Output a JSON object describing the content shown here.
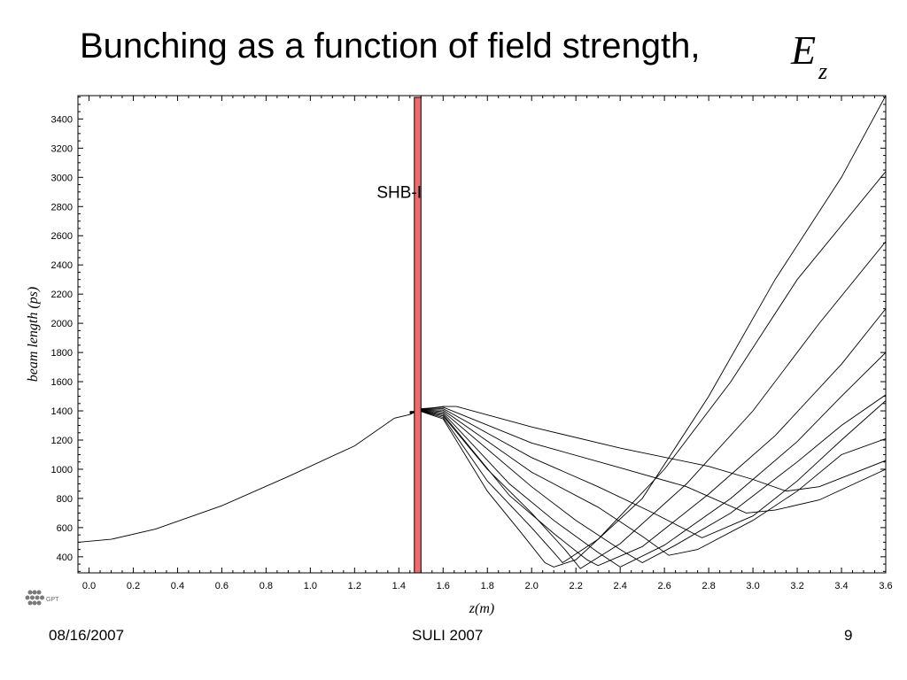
{
  "slide": {
    "title": "Bunching as a function of field strength,",
    "title_var": "E",
    "title_sub": "z",
    "footer_date": "08/16/2007",
    "footer_center": "SULI 2007",
    "page_number": "9",
    "logo_text": "GPT"
  },
  "chart_data": {
    "type": "line",
    "title": "",
    "xlabel": "z(m)",
    "ylabel": "beam length (ps)",
    "xlim": [
      -0.05,
      3.6
    ],
    "ylim": [
      290,
      3560
    ],
    "xticks": [
      "0.0",
      "0.2",
      "0.4",
      "0.6",
      "0.8",
      "1.0",
      "1.2",
      "1.4",
      "1.6",
      "1.8",
      "2.0",
      "2.2",
      "2.4",
      "2.6",
      "2.8",
      "3.0",
      "3.2",
      "3.4",
      "3.6"
    ],
    "yticks": [
      "400",
      "600",
      "800",
      "1000",
      "1200",
      "1400",
      "1600",
      "1800",
      "2000",
      "2200",
      "2400",
      "2600",
      "2800",
      "3000",
      "3200",
      "3400"
    ],
    "annotation": {
      "label": "SHB-I",
      "x": 1.3,
      "y": 2860
    },
    "cavity": {
      "x_start": 1.47,
      "x_end": 1.5,
      "color": "#f06b6b"
    },
    "colors": {
      "line": "#000000",
      "axis": "#000000"
    },
    "series": [
      {
        "values": [
          [
            -0.05,
            500
          ],
          [
            0.1,
            520
          ],
          [
            0.3,
            590
          ],
          [
            0.6,
            750
          ],
          [
            0.9,
            950
          ],
          [
            1.2,
            1160
          ],
          [
            1.38,
            1350
          ],
          [
            1.45,
            1375
          ],
          [
            1.5,
            1410
          ],
          [
            1.6,
            1430
          ],
          [
            1.66,
            1430
          ],
          [
            2.0,
            1290
          ],
          [
            2.4,
            1145
          ],
          [
            2.8,
            1020
          ],
          [
            3.0,
            930
          ],
          [
            3.15,
            850
          ],
          [
            3.3,
            880
          ],
          [
            3.6,
            1060
          ]
        ]
      },
      {
        "values": [
          [
            1.45,
            1380
          ],
          [
            1.5,
            1415
          ],
          [
            1.6,
            1425
          ],
          [
            2.0,
            1180
          ],
          [
            2.4,
            1010
          ],
          [
            2.7,
            880
          ],
          [
            2.97,
            700
          ],
          [
            3.1,
            720
          ],
          [
            3.3,
            790
          ],
          [
            3.6,
            1000
          ]
        ]
      },
      {
        "values": [
          [
            1.45,
            1382
          ],
          [
            1.5,
            1412
          ],
          [
            1.6,
            1415
          ],
          [
            2.0,
            1080
          ],
          [
            2.3,
            880
          ],
          [
            2.55,
            700
          ],
          [
            2.77,
            530
          ],
          [
            3.0,
            680
          ],
          [
            3.2,
            920
          ],
          [
            3.4,
            1200
          ],
          [
            3.6,
            1470
          ]
        ]
      },
      {
        "values": [
          [
            1.45,
            1384
          ],
          [
            1.5,
            1410
          ],
          [
            1.6,
            1405
          ],
          [
            2.0,
            980
          ],
          [
            2.3,
            740
          ],
          [
            2.5,
            540
          ],
          [
            2.62,
            410
          ],
          [
            2.75,
            450
          ],
          [
            3.0,
            650
          ],
          [
            3.2,
            850
          ],
          [
            3.4,
            1100
          ],
          [
            3.6,
            1210
          ]
        ]
      },
      {
        "values": [
          [
            1.45,
            1386
          ],
          [
            1.5,
            1408
          ],
          [
            1.6,
            1395
          ],
          [
            2.0,
            880
          ],
          [
            2.2,
            650
          ],
          [
            2.4,
            450
          ],
          [
            2.5,
            360
          ],
          [
            2.65,
            480
          ],
          [
            2.9,
            700
          ],
          [
            3.2,
            1050
          ],
          [
            3.4,
            1300
          ],
          [
            3.6,
            1510
          ]
        ]
      },
      {
        "values": [
          [
            1.45,
            1388
          ],
          [
            1.5,
            1405
          ],
          [
            1.6,
            1385
          ],
          [
            1.9,
            900
          ],
          [
            2.1,
            650
          ],
          [
            2.3,
            430
          ],
          [
            2.4,
            330
          ],
          [
            2.6,
            480
          ],
          [
            2.9,
            800
          ],
          [
            3.2,
            1190
          ],
          [
            3.4,
            1500
          ],
          [
            3.6,
            1800
          ]
        ]
      },
      {
        "values": [
          [
            1.45,
            1390
          ],
          [
            1.5,
            1402
          ],
          [
            1.6,
            1375
          ],
          [
            1.9,
            820
          ],
          [
            2.1,
            560
          ],
          [
            2.25,
            380
          ],
          [
            2.3,
            340
          ],
          [
            2.5,
            470
          ],
          [
            2.8,
            830
          ],
          [
            3.1,
            1230
          ],
          [
            3.4,
            1720
          ],
          [
            3.6,
            2100
          ]
        ]
      },
      {
        "values": [
          [
            1.45,
            1392
          ],
          [
            1.5,
            1400
          ],
          [
            1.6,
            1365
          ],
          [
            1.8,
            1000
          ],
          [
            2.0,
            700
          ],
          [
            2.15,
            450
          ],
          [
            2.22,
            320
          ],
          [
            2.4,
            490
          ],
          [
            2.7,
            900
          ],
          [
            3.0,
            1400
          ],
          [
            3.3,
            2000
          ],
          [
            3.6,
            2560
          ]
        ]
      },
      {
        "values": [
          [
            1.45,
            1394
          ],
          [
            1.5,
            1398
          ],
          [
            1.6,
            1355
          ],
          [
            1.8,
            920
          ],
          [
            2.0,
            600
          ],
          [
            2.1,
            430
          ],
          [
            2.14,
            360
          ],
          [
            2.3,
            520
          ],
          [
            2.6,
            1000
          ],
          [
            2.9,
            1600
          ],
          [
            3.2,
            2300
          ],
          [
            3.6,
            3040
          ]
        ]
      },
      {
        "values": [
          [
            1.45,
            1396
          ],
          [
            1.5,
            1396
          ],
          [
            1.6,
            1345
          ],
          [
            1.8,
            850
          ],
          [
            1.95,
            570
          ],
          [
            2.06,
            360
          ],
          [
            2.1,
            330
          ],
          [
            2.2,
            380
          ],
          [
            2.5,
            800
          ],
          [
            2.8,
            1500
          ],
          [
            3.1,
            2300
          ],
          [
            3.4,
            3000
          ],
          [
            3.6,
            3560
          ]
        ]
      }
    ]
  }
}
